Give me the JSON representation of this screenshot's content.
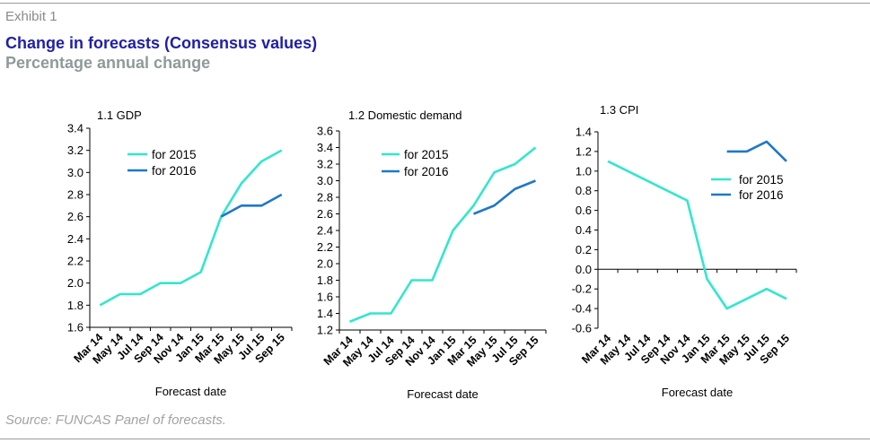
{
  "header": {
    "exhibit": "Exhibit 1",
    "title": "Change in forecasts (Consensus values)",
    "subtitle": "Percentage annual change"
  },
  "footer": {
    "source": "Source: FUNCAS Panel of forecasts."
  },
  "colors": {
    "series_2015": "#33e6cc",
    "series_2016": "#1f78c8",
    "axis": "#000000"
  },
  "chart_data": [
    {
      "type": "line",
      "title": "1.1 GDP",
      "xlabel": "Forecast date",
      "ylabel": "",
      "categories": [
        "Mar 14",
        "May 14",
        "Jul 14",
        "Sep 14",
        "Nov 14",
        "Jan 15",
        "Mar 15",
        "May 15",
        "Jul 15",
        "Sep 15"
      ],
      "ylim": [
        1.6,
        3.4
      ],
      "yticks": [
        "1.6",
        "1.8",
        "2.0",
        "2.2",
        "2.4",
        "2.6",
        "2.8",
        "3.0",
        "3.2",
        "3.4"
      ],
      "legend_position": "top-left",
      "series": [
        {
          "name": "for 2015",
          "values": [
            1.8,
            1.9,
            1.9,
            2.0,
            2.0,
            2.1,
            2.6,
            2.9,
            3.1,
            3.2
          ]
        },
        {
          "name": "for 2016",
          "values": [
            null,
            null,
            null,
            null,
            null,
            null,
            2.6,
            2.7,
            2.7,
            2.8
          ]
        }
      ]
    },
    {
      "type": "line",
      "title": "1.2 Domestic demand",
      "xlabel": "Forecast date",
      "ylabel": "",
      "categories": [
        "Mar 14",
        "May 14",
        "Jul 14",
        "Sep 14",
        "Nov 14",
        "Jan 15",
        "Mar 15",
        "May 15",
        "Jul 15",
        "Sep 15"
      ],
      "ylim": [
        1.2,
        3.6
      ],
      "yticks": [
        "1.2",
        "1.4",
        "1.6",
        "1.8",
        "2.0",
        "2.2",
        "2.4",
        "2.6",
        "2.8",
        "3.0",
        "3.2",
        "3.4",
        "3.6"
      ],
      "legend_position": "top-left",
      "series": [
        {
          "name": "for 2015",
          "values": [
            1.3,
            1.4,
            1.4,
            1.8,
            1.8,
            2.4,
            2.7,
            3.1,
            3.2,
            3.4
          ]
        },
        {
          "name": "for 2016",
          "values": [
            null,
            null,
            null,
            null,
            null,
            null,
            2.6,
            2.7,
            2.9,
            3.0
          ]
        }
      ]
    },
    {
      "type": "line",
      "title": "1.3 CPI",
      "xlabel": "Forecast date",
      "ylabel": "",
      "categories": [
        "Mar 14",
        "May 14",
        "Jul 14",
        "Sep 14",
        "Nov 14",
        "Jan 15",
        "Mar 15",
        "May 15",
        "Jul 15",
        "Sep 15"
      ],
      "ylim": [
        -0.6,
        1.4
      ],
      "yticks": [
        "-0.6",
        "-0.4",
        "-0.2",
        "0.0",
        "0.2",
        "0.4",
        "0.6",
        "0.8",
        "1.0",
        "1.2",
        "1.4"
      ],
      "legend_position": "right",
      "series": [
        {
          "name": "for 2015",
          "values": [
            1.1,
            null,
            null,
            null,
            0.7,
            -0.1,
            -0.4,
            -0.3,
            -0.2,
            -0.3
          ]
        },
        {
          "name": "for 2016",
          "values": [
            null,
            null,
            null,
            null,
            null,
            null,
            1.2,
            1.2,
            1.3,
            1.1
          ]
        }
      ]
    }
  ]
}
